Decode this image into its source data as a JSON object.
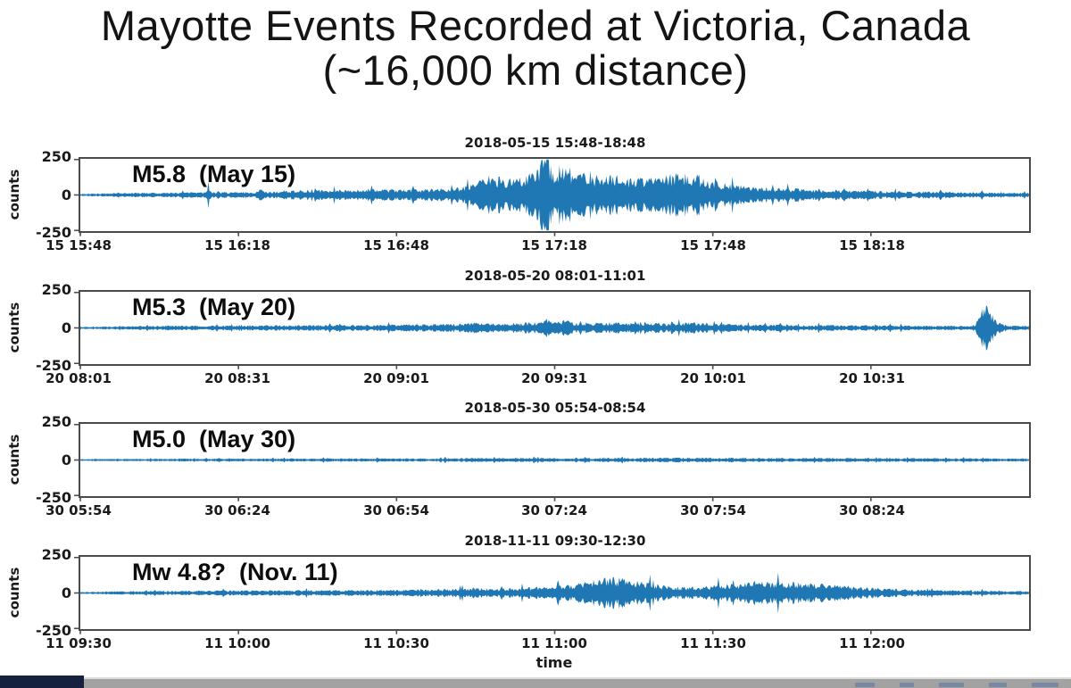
{
  "slide": {
    "title_line1": "Mayotte Events Recorded at Victoria, Canada",
    "title_line2": "(~16,000 km distance)"
  },
  "axis_shared": {
    "ylabel": "counts",
    "ytick_labels": [
      "250",
      "0",
      "-250"
    ],
    "yticks": [
      250,
      0,
      -250
    ],
    "ylim": [
      -250,
      250
    ],
    "xlabel": "time",
    "trace_color": "#1f77b4",
    "spine_color": "#4a4a4a"
  },
  "chart_data": [
    {
      "type": "area",
      "title": "2018-05-15 15:48-18:48",
      "event_label": "M5.8  (May 15)",
      "ylabel": "counts",
      "ylim": [
        -250,
        250
      ],
      "xticklabels": [
        "15 15:48",
        "15 16:18",
        "15 16:48",
        "15 17:18",
        "15 17:48",
        "15 18:18"
      ],
      "envelope_counts": [
        [
          0,
          6
        ],
        [
          0.03,
          11
        ],
        [
          0.06,
          13
        ],
        [
          0.09,
          15
        ],
        [
          0.12,
          16
        ],
        [
          0.132,
          17
        ],
        [
          0.135,
          50
        ],
        [
          0.138,
          17
        ],
        [
          0.165,
          18
        ],
        [
          0.188,
          20
        ],
        [
          0.191,
          55
        ],
        [
          0.194,
          20
        ],
        [
          0.22,
          28
        ],
        [
          0.25,
          32
        ],
        [
          0.28,
          30
        ],
        [
          0.31,
          34
        ],
        [
          0.34,
          32
        ],
        [
          0.37,
          36
        ],
        [
          0.4,
          45
        ],
        [
          0.414,
          75
        ],
        [
          0.425,
          115
        ],
        [
          0.44,
          110
        ],
        [
          0.455,
          100
        ],
        [
          0.47,
          125
        ],
        [
          0.48,
          150
        ],
        [
          0.492,
          275
        ],
        [
          0.5,
          140
        ],
        [
          0.51,
          210
        ],
        [
          0.52,
          150
        ],
        [
          0.535,
          130
        ],
        [
          0.55,
          118
        ],
        [
          0.565,
          122
        ],
        [
          0.58,
          105
        ],
        [
          0.6,
          98
        ],
        [
          0.615,
          110
        ],
        [
          0.632,
          140
        ],
        [
          0.647,
          130
        ],
        [
          0.66,
          100
        ],
        [
          0.684,
          70
        ],
        [
          0.7,
          52
        ],
        [
          0.72,
          48
        ],
        [
          0.75,
          40
        ],
        [
          0.78,
          33
        ],
        [
          0.81,
          28
        ],
        [
          0.84,
          25
        ],
        [
          0.87,
          22
        ],
        [
          0.91,
          19
        ],
        [
          0.95,
          16
        ],
        [
          1,
          13
        ]
      ]
    },
    {
      "type": "area",
      "title": "2018-05-20 08:01-11:01",
      "event_label": "M5.3  (May 20)",
      "ylabel": "counts",
      "ylim": [
        -250,
        250
      ],
      "xticklabels": [
        "20 08:01",
        "20 08:31",
        "20 09:01",
        "20 09:31",
        "20 10:01",
        "20 10:31"
      ],
      "envelope_counts": [
        [
          0,
          6
        ],
        [
          0.04,
          11
        ],
        [
          0.08,
          13
        ],
        [
          0.12,
          14
        ],
        [
          0.16,
          15
        ],
        [
          0.2,
          17
        ],
        [
          0.24,
          18
        ],
        [
          0.28,
          19
        ],
        [
          0.32,
          20
        ],
        [
          0.36,
          22
        ],
        [
          0.4,
          26
        ],
        [
          0.42,
          34
        ],
        [
          0.435,
          30
        ],
        [
          0.45,
          28
        ],
        [
          0.465,
          32
        ],
        [
          0.48,
          34
        ],
        [
          0.493,
          68
        ],
        [
          0.5,
          35
        ],
        [
          0.51,
          52
        ],
        [
          0.52,
          34
        ],
        [
          0.54,
          32
        ],
        [
          0.56,
          34
        ],
        [
          0.58,
          30
        ],
        [
          0.6,
          28
        ],
        [
          0.62,
          27
        ],
        [
          0.644,
          34
        ],
        [
          0.66,
          27
        ],
        [
          0.68,
          24
        ],
        [
          0.7,
          22
        ],
        [
          0.73,
          20
        ],
        [
          0.76,
          18
        ],
        [
          0.79,
          17
        ],
        [
          0.82,
          16
        ],
        [
          0.85,
          15
        ],
        [
          0.88,
          14
        ],
        [
          0.9,
          13
        ],
        [
          0.93,
          13
        ],
        [
          0.943,
          18
        ],
        [
          0.948,
          90
        ],
        [
          0.952,
          165
        ],
        [
          0.957,
          130
        ],
        [
          0.963,
          60
        ],
        [
          0.97,
          28
        ],
        [
          0.98,
          16
        ],
        [
          1,
          12
        ]
      ]
    },
    {
      "type": "area",
      "title": "2018-05-30 05:54-08:54",
      "event_label": "M5.0  (May 30)",
      "ylabel": "counts",
      "ylim": [
        -250,
        250
      ],
      "xticklabels": [
        "30 05:54",
        "30 06:24",
        "30 06:54",
        "30 07:24",
        "30 07:54",
        "30 08:24"
      ],
      "envelope_counts": [
        [
          0,
          5
        ],
        [
          0.05,
          7
        ],
        [
          0.1,
          8
        ],
        [
          0.15,
          9
        ],
        [
          0.2,
          9
        ],
        [
          0.25,
          10
        ],
        [
          0.3,
          10
        ],
        [
          0.35,
          10
        ],
        [
          0.4,
          11
        ],
        [
          0.45,
          13
        ],
        [
          0.5,
          12
        ],
        [
          0.55,
          13
        ],
        [
          0.6,
          13
        ],
        [
          0.65,
          14
        ],
        [
          0.7,
          13
        ],
        [
          0.75,
          12
        ],
        [
          0.8,
          12
        ],
        [
          0.85,
          11
        ],
        [
          0.9,
          11
        ],
        [
          0.95,
          10
        ],
        [
          1,
          9
        ]
      ]
    },
    {
      "type": "area",
      "title": "2018-11-11 09:30-12:30",
      "event_label": "Mw 4.8?  (Nov. 11)",
      "ylabel": "counts",
      "ylim": [
        -250,
        250
      ],
      "xlabel": "time",
      "xticklabels": [
        "11 09:30",
        "11 10:00",
        "11 10:30",
        "11 11:00",
        "11 11:30",
        "11 12:00"
      ],
      "envelope_counts": [
        [
          0,
          6
        ],
        [
          0.04,
          11
        ],
        [
          0.08,
          13
        ],
        [
          0.12,
          14
        ],
        [
          0.16,
          15
        ],
        [
          0.2,
          16
        ],
        [
          0.24,
          17
        ],
        [
          0.28,
          18
        ],
        [
          0.32,
          19
        ],
        [
          0.36,
          21
        ],
        [
          0.4,
          26
        ],
        [
          0.42,
          30
        ],
        [
          0.44,
          25
        ],
        [
          0.46,
          30
        ],
        [
          0.48,
          36
        ],
        [
          0.5,
          40
        ],
        [
          0.52,
          52
        ],
        [
          0.54,
          75
        ],
        [
          0.558,
          95
        ],
        [
          0.575,
          88
        ],
        [
          0.59,
          72
        ],
        [
          0.61,
          52
        ],
        [
          0.63,
          38
        ],
        [
          0.65,
          40
        ],
        [
          0.67,
          50
        ],
        [
          0.69,
          58
        ],
        [
          0.71,
          64
        ],
        [
          0.73,
          68
        ],
        [
          0.75,
          66
        ],
        [
          0.77,
          60
        ],
        [
          0.79,
          52
        ],
        [
          0.81,
          42
        ],
        [
          0.83,
          32
        ],
        [
          0.86,
          25
        ],
        [
          0.89,
          20
        ],
        [
          0.92,
          16
        ],
        [
          0.95,
          14
        ],
        [
          0.98,
          12
        ],
        [
          1,
          11
        ]
      ]
    }
  ],
  "footer": {
    "progress_color": "#16203f",
    "bar_color": "#a2a2a2"
  }
}
